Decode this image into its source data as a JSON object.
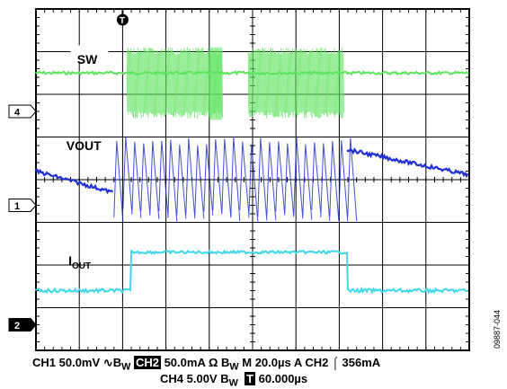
{
  "chart_data": {
    "type": "line",
    "x_divisions": 10,
    "y_divisions": 8,
    "grid": true,
    "trigger_marker": "T",
    "series": [
      {
        "name": "SW",
        "channel": "4",
        "color": "#5ee45e",
        "label_parts": [
          "SW"
        ],
        "active_bursts": [
          [
            2.1,
            4.3
          ],
          [
            4.9,
            7.1
          ]
        ],
        "dense_region": [
          4.0,
          4.3
        ]
      },
      {
        "name": "VOUT",
        "channel": "1",
        "color": "#1f2fd6",
        "label_parts": [
          "VOUT"
        ],
        "ramp_down_start": 0,
        "ripple_region": [
          1.8,
          7.2
        ],
        "ramp_down_end": 10
      },
      {
        "name": "IOUT",
        "channel": "2",
        "color": "#3fd8e8",
        "label_parts": [
          "I",
          "OUT"
        ],
        "low_region_end": 2.2,
        "high_region": [
          2.2,
          7.2
        ],
        "levels": {
          "low": 0,
          "high": 1
        }
      }
    ],
    "status": {
      "line1": {
        "ch1": "CH1 50.0mV",
        "bw_sym": "∿",
        "bw1": "B",
        "bw1_sub": "W",
        "ch2_badge": "CH2",
        "ch2": "50.0mA Ω",
        "bw2": "B",
        "bw2_sub": "W",
        "timebase": "M 20.0µs",
        "trigger": "A CH2",
        "edge_sym": "⌠",
        "level": "356mA"
      },
      "line2": {
        "ch4": "CH4 5.00V",
        "bw": "B",
        "bw_sub": "W",
        "t_badge": "T",
        "offset": "60.000µs"
      }
    },
    "figure_id": "09887-044"
  }
}
